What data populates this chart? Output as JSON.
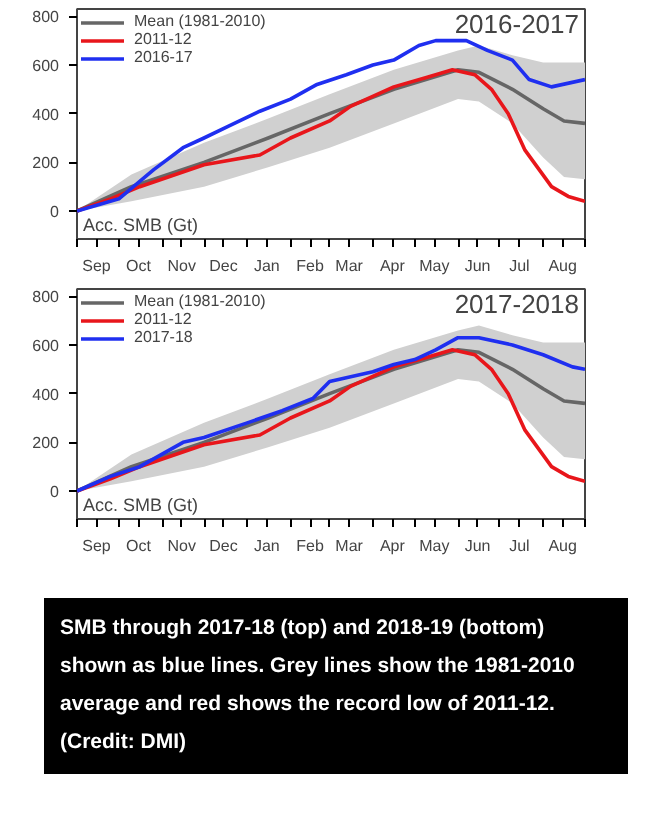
{
  "chart_data": [
    {
      "type": "line",
      "title": "2016-2017",
      "xlim": [
        "2016-09-01",
        "2017-08-31"
      ],
      "ylim": [
        -115,
        830
      ],
      "yticks": [
        0,
        200,
        400,
        600,
        800
      ],
      "xticks": [
        {
          "value": "2016-09-01",
          "label": null
        },
        {
          "value": "2016-09-15",
          "label": "Sep"
        },
        {
          "value": "2016-10-01",
          "label": null
        },
        {
          "value": "2016-10-15",
          "label": "Oct"
        },
        {
          "value": "2016-11-01",
          "label": null
        },
        {
          "value": "2016-11-15",
          "label": "Nov"
        },
        {
          "value": "2016-12-01",
          "label": null
        },
        {
          "value": "2016-12-15",
          "label": "Dec"
        },
        {
          "value": "2017-01-01",
          "label": null
        },
        {
          "value": "2017-01-15",
          "label": "Jan"
        },
        {
          "value": "2017-02-01",
          "label": null
        },
        {
          "value": "2017-02-15",
          "label": "Feb"
        },
        {
          "value": "2017-03-01",
          "label": null
        },
        {
          "value": "2017-03-15",
          "label": "Mar"
        },
        {
          "value": "2017-04-01",
          "label": null
        },
        {
          "value": "2017-04-15",
          "label": "Apr"
        },
        {
          "value": "2017-05-01",
          "label": null
        },
        {
          "value": "2017-05-15",
          "label": "May"
        },
        {
          "value": "2017-06-01",
          "label": null
        },
        {
          "value": "2017-06-15",
          "label": "Jun"
        },
        {
          "value": "2017-07-01",
          "label": null
        },
        {
          "value": "2017-07-15",
          "label": "Jul"
        },
        {
          "value": "2017-08-01",
          "label": null
        },
        {
          "value": "2017-08-15",
          "label": "Aug"
        },
        {
          "value": "2017-08-31",
          "label": null
        }
      ],
      "grid": false,
      "legend": "top left",
      "annotations": [
        "Acc. SMB (Gt)"
      ],
      "series": [
        {
          "name": "Mean (1981-2010)",
          "color": "#666666",
          "x": [
            "2016-09-01",
            "2016-10-10",
            "2016-12-01",
            "2017-01-16",
            "2017-03-01",
            "2017-04-16",
            "2017-06-01",
            "2017-06-16",
            "2017-07-10",
            "2017-08-01",
            "2017-08-16",
            "2017-08-31"
          ],
          "values": [
            0,
            100,
            200,
            300,
            400,
            500,
            580,
            570,
            500,
            420,
            370,
            360
          ],
          "lower": [
            0,
            40,
            100,
            180,
            260,
            360,
            460,
            450,
            360,
            220,
            140,
            130
          ],
          "upper": [
            0,
            150,
            280,
            380,
            480,
            580,
            660,
            680,
            640,
            610,
            610,
            610
          ]
        },
        {
          "name": "2011-12",
          "color": "#e8161b",
          "x": [
            "2016-09-01",
            "2016-09-25",
            "2016-10-16",
            "2016-12-01",
            "2017-01-10",
            "2017-02-01",
            "2017-03-01",
            "2017-03-16",
            "2017-04-16",
            "2017-05-10",
            "2017-05-28",
            "2017-06-13",
            "2017-06-25",
            "2017-07-07",
            "2017-07-19",
            "2017-08-07",
            "2017-08-19",
            "2017-08-31"
          ],
          "values": [
            0,
            50,
            100,
            190,
            230,
            300,
            370,
            430,
            510,
            550,
            580,
            560,
            500,
            400,
            250,
            100,
            60,
            40
          ]
        },
        {
          "name": "2016-17",
          "color": "#1f2ff0",
          "x": [
            "2016-09-01",
            "2016-10-01",
            "2016-10-26",
            "2016-11-16",
            "2016-12-01",
            "2016-12-19",
            "2017-01-10",
            "2017-02-01",
            "2017-02-20",
            "2017-03-13",
            "2017-04-01",
            "2017-04-16",
            "2017-05-04",
            "2017-05-16",
            "2017-06-07",
            "2017-06-22",
            "2017-07-10",
            "2017-07-22",
            "2017-08-07",
            "2017-08-31"
          ],
          "values": [
            0,
            50,
            170,
            260,
            300,
            350,
            410,
            460,
            520,
            560,
            600,
            620,
            680,
            700,
            700,
            660,
            620,
            540,
            510,
            540
          ]
        }
      ]
    },
    {
      "type": "line",
      "title": "2017-2018",
      "xlim": [
        "2017-09-01",
        "2018-08-31"
      ],
      "ylim": [
        -115,
        830
      ],
      "yticks": [
        0,
        200,
        400,
        600,
        800
      ],
      "xticks": [
        {
          "value": "2017-09-01",
          "label": null
        },
        {
          "value": "2017-09-15",
          "label": "Sep"
        },
        {
          "value": "2017-10-01",
          "label": null
        },
        {
          "value": "2017-10-15",
          "label": "Oct"
        },
        {
          "value": "2017-11-01",
          "label": null
        },
        {
          "value": "2017-11-15",
          "label": "Nov"
        },
        {
          "value": "2017-12-01",
          "label": null
        },
        {
          "value": "2017-12-15",
          "label": "Dec"
        },
        {
          "value": "2018-01-01",
          "label": null
        },
        {
          "value": "2018-01-15",
          "label": "Jan"
        },
        {
          "value": "2018-02-01",
          "label": null
        },
        {
          "value": "2018-02-15",
          "label": "Feb"
        },
        {
          "value": "2018-03-01",
          "label": null
        },
        {
          "value": "2018-03-15",
          "label": "Mar"
        },
        {
          "value": "2018-04-01",
          "label": null
        },
        {
          "value": "2018-04-15",
          "label": "Apr"
        },
        {
          "value": "2018-05-01",
          "label": null
        },
        {
          "value": "2018-05-15",
          "label": "May"
        },
        {
          "value": "2018-06-01",
          "label": null
        },
        {
          "value": "2018-06-15",
          "label": "Jun"
        },
        {
          "value": "2018-07-01",
          "label": null
        },
        {
          "value": "2018-07-15",
          "label": "Jul"
        },
        {
          "value": "2018-08-01",
          "label": null
        },
        {
          "value": "2018-08-15",
          "label": "Aug"
        },
        {
          "value": "2018-08-31",
          "label": null
        }
      ],
      "grid": false,
      "legend": "top left",
      "annotations": [
        "Acc. SMB (Gt)",
        "SMB through 2017-18 (top) and 2018-19 (bottom) shown as blue lines. Grey lines show the 1981-2010 average and red shows the record low of 2011-12. (Credit: DMI)"
      ],
      "series": [
        {
          "name": "Mean (1981-2010)",
          "color": "#666666",
          "x": [
            "2017-09-01",
            "2017-10-10",
            "2017-12-01",
            "2018-01-16",
            "2018-03-01",
            "2018-04-16",
            "2018-06-01",
            "2018-06-16",
            "2018-07-10",
            "2018-08-01",
            "2018-08-16",
            "2018-08-31"
          ],
          "values": [
            0,
            100,
            200,
            300,
            400,
            500,
            580,
            570,
            500,
            420,
            370,
            360
          ],
          "lower": [
            0,
            40,
            100,
            180,
            260,
            360,
            460,
            450,
            360,
            220,
            140,
            130
          ],
          "upper": [
            0,
            150,
            280,
            380,
            480,
            580,
            660,
            680,
            640,
            610,
            610,
            610
          ]
        },
        {
          "name": "2011-12",
          "color": "#e8161b",
          "x": [
            "2017-09-01",
            "2017-09-25",
            "2017-10-16",
            "2017-12-01",
            "2018-01-10",
            "2018-02-01",
            "2018-03-01",
            "2018-03-16",
            "2018-04-16",
            "2018-05-10",
            "2018-05-28",
            "2018-06-13",
            "2018-06-25",
            "2018-07-07",
            "2018-07-19",
            "2018-08-07",
            "2018-08-19",
            "2018-08-31"
          ],
          "values": [
            0,
            50,
            100,
            190,
            230,
            300,
            370,
            430,
            510,
            550,
            580,
            560,
            500,
            400,
            250,
            100,
            60,
            40
          ]
        },
        {
          "name": "2017-18",
          "color": "#1f2ff0",
          "x": [
            "2017-09-01",
            "2017-09-25",
            "2017-10-16",
            "2017-11-16",
            "2017-12-01",
            "2018-01-01",
            "2018-01-26",
            "2018-02-17",
            "2018-03-01",
            "2018-04-01",
            "2018-04-16",
            "2018-05-01",
            "2018-05-16",
            "2018-06-01",
            "2018-06-16",
            "2018-07-10",
            "2018-08-01",
            "2018-08-22",
            "2018-08-31"
          ],
          "values": [
            0,
            60,
            100,
            200,
            220,
            280,
            330,
            380,
            450,
            490,
            520,
            540,
            580,
            630,
            630,
            600,
            560,
            510,
            500
          ]
        }
      ]
    }
  ]
}
